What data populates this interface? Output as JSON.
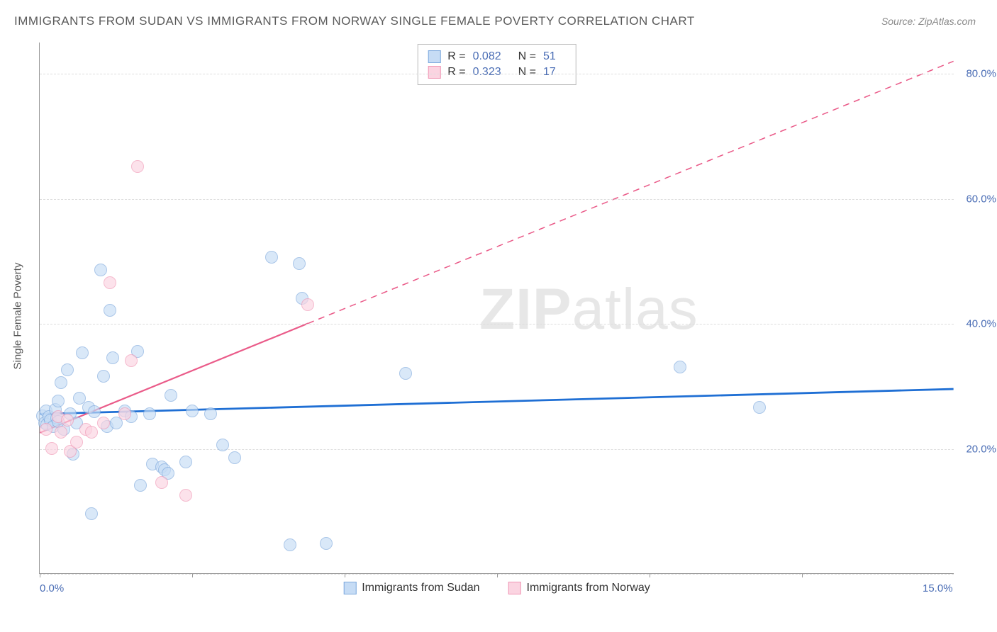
{
  "title": "IMMIGRANTS FROM SUDAN VS IMMIGRANTS FROM NORWAY SINGLE FEMALE POVERTY CORRELATION CHART",
  "source": "Source: ZipAtlas.com",
  "watermark": {
    "zip": "ZIP",
    "atlas": "atlas"
  },
  "chart": {
    "type": "scatter",
    "ylabel": "Single Female Poverty",
    "xlim": [
      0,
      15
    ],
    "ylim": [
      0,
      85
    ],
    "xtick_labels": [
      "0.0%",
      "15.0%"
    ],
    "xtick_positions": [
      0,
      15
    ],
    "xtick_marks": [
      0,
      2.5,
      5.0,
      7.5,
      10.0,
      12.5
    ],
    "ytick_labels": [
      "20.0%",
      "40.0%",
      "60.0%",
      "80.0%"
    ],
    "ytick_positions": [
      20,
      40,
      60,
      80
    ],
    "grid_y": [
      0,
      20,
      40,
      60,
      80
    ],
    "grid_color": "#dddddd",
    "background_color": "#ffffff",
    "label_fontsize": 15,
    "axis_color": "#4a6db5",
    "point_radius": 9,
    "point_opacity": 0.65
  },
  "series": [
    {
      "name": "Immigrants from Sudan",
      "color_fill": "#c6dcf5",
      "color_stroke": "#7da9dd",
      "trend_color": "#1f6fd4",
      "trend_width": 2.8,
      "R": "0.082",
      "N": "51",
      "trend": {
        "x1": 0,
        "y1": 25.5,
        "x2": 15,
        "y2": 29.5,
        "dash": false
      },
      "points": [
        [
          0.05,
          25.2
        ],
        [
          0.08,
          24.0
        ],
        [
          0.1,
          26.0
        ],
        [
          0.12,
          23.8
        ],
        [
          0.15,
          25.0
        ],
        [
          0.18,
          24.5
        ],
        [
          0.22,
          23.5
        ],
        [
          0.25,
          26.2
        ],
        [
          0.28,
          24.8
        ],
        [
          0.3,
          27.5
        ],
        [
          0.35,
          30.5
        ],
        [
          0.4,
          23.0
        ],
        [
          0.45,
          32.5
        ],
        [
          0.5,
          25.5
        ],
        [
          0.55,
          19.0
        ],
        [
          0.6,
          24.0
        ],
        [
          0.65,
          28.0
        ],
        [
          0.7,
          35.2
        ],
        [
          0.8,
          26.5
        ],
        [
          0.85,
          9.5
        ],
        [
          0.9,
          25.8
        ],
        [
          1.0,
          48.5
        ],
        [
          1.05,
          31.5
        ],
        [
          1.1,
          23.5
        ],
        [
          1.15,
          42.0
        ],
        [
          1.2,
          34.5
        ],
        [
          1.25,
          24.0
        ],
        [
          1.4,
          26.0
        ],
        [
          1.5,
          25.0
        ],
        [
          1.6,
          35.5
        ],
        [
          1.65,
          14.0
        ],
        [
          1.8,
          25.5
        ],
        [
          1.85,
          17.5
        ],
        [
          2.0,
          17.0
        ],
        [
          2.05,
          16.5
        ],
        [
          2.1,
          16.0
        ],
        [
          2.15,
          28.5
        ],
        [
          2.4,
          17.8
        ],
        [
          2.5,
          26.0
        ],
        [
          2.8,
          25.5
        ],
        [
          3.0,
          20.5
        ],
        [
          3.2,
          18.5
        ],
        [
          3.8,
          50.5
        ],
        [
          4.1,
          4.5
        ],
        [
          4.25,
          49.5
        ],
        [
          4.3,
          44.0
        ],
        [
          4.7,
          4.8
        ],
        [
          6.0,
          32.0
        ],
        [
          10.5,
          33.0
        ],
        [
          11.8,
          26.5
        ],
        [
          0.3,
          24.2
        ]
      ]
    },
    {
      "name": "Immigrants from Norway",
      "color_fill": "#fbd4e1",
      "color_stroke": "#f096b4",
      "trend_color": "#ea5b89",
      "trend_width": 2.2,
      "R": "0.323",
      "N": "17",
      "trend": {
        "x1": 0,
        "y1": 22.5,
        "x2": 4.4,
        "y2": 40.0,
        "dash": false
      },
      "trend_ext": {
        "x1": 4.4,
        "y1": 40.0,
        "x2": 15,
        "y2": 82.0,
        "dash": true
      },
      "points": [
        [
          0.1,
          23.0
        ],
        [
          0.2,
          20.0
        ],
        [
          0.3,
          25.0
        ],
        [
          0.35,
          22.5
        ],
        [
          0.45,
          24.5
        ],
        [
          0.5,
          19.5
        ],
        [
          0.6,
          21.0
        ],
        [
          0.75,
          23.0
        ],
        [
          0.85,
          22.5
        ],
        [
          1.05,
          24.0
        ],
        [
          1.15,
          46.5
        ],
        [
          1.4,
          25.5
        ],
        [
          1.5,
          34.0
        ],
        [
          1.6,
          65.0
        ],
        [
          2.0,
          14.5
        ],
        [
          2.4,
          12.5
        ],
        [
          4.4,
          43.0
        ]
      ]
    }
  ],
  "stats_box": {
    "rows": [
      {
        "swatch_fill": "#c6dcf5",
        "swatch_stroke": "#7da9dd",
        "R_label": "R =",
        "R": "0.082",
        "N_label": "N =",
        "N": "51"
      },
      {
        "swatch_fill": "#fbd4e1",
        "swatch_stroke": "#f096b4",
        "R_label": "R =",
        "R": "0.323",
        "N_label": "N =",
        "N": "17"
      }
    ]
  },
  "legend": [
    {
      "swatch_fill": "#c6dcf5",
      "swatch_stroke": "#7da9dd",
      "label": "Immigrants from Sudan"
    },
    {
      "swatch_fill": "#fbd4e1",
      "swatch_stroke": "#f096b4",
      "label": "Immigrants from Norway"
    }
  ]
}
